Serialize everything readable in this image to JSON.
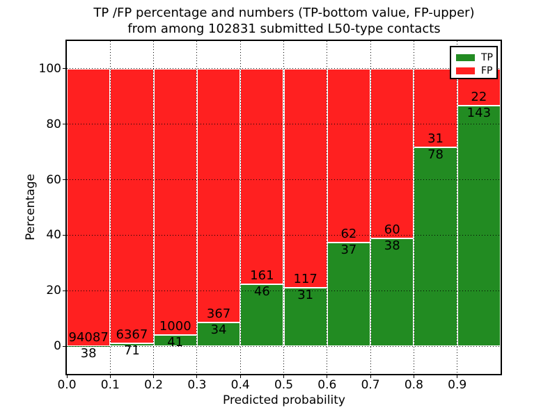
{
  "title": {
    "line1": "TP /FP percentage and numbers (TP-bottom value, FP-upper)",
    "line2": "from among 102831 submitted L50-type contacts"
  },
  "axes": {
    "xlabel": "Predicted probability",
    "ylabel": "Percentage",
    "x_tick_labels": [
      "0.0",
      "0.1",
      "0.2",
      "0.3",
      "0.4",
      "0.5",
      "0.6",
      "0.7",
      "0.8",
      "0.9"
    ],
    "y_tick_labels": [
      "0",
      "20",
      "40",
      "60",
      "80",
      "100"
    ]
  },
  "legend": {
    "items": [
      {
        "label": "TP",
        "color": "#228b22"
      },
      {
        "label": "FP",
        "color": "#ff2020"
      }
    ]
  },
  "colors": {
    "tp_green": "#228b22",
    "fp_red": "#ff2020",
    "background": "#ffffff",
    "text": "#000000",
    "grid": "#000000",
    "bar_edge": "#ffffff"
  },
  "chart_data": {
    "type": "bar",
    "stacked": true,
    "normalized": "each bin stack sums to 100%",
    "title": "TP /FP percentage and numbers (TP-bottom value, FP-upper) from among 102831 submitted L50-type contacts",
    "xlabel": "Predicted probability",
    "ylabel": "Percentage",
    "total_submitted_contacts": 102831,
    "categories": [
      "0.0-0.1",
      "0.1-0.2",
      "0.2-0.3",
      "0.3-0.4",
      "0.4-0.5",
      "0.5-0.6",
      "0.6-0.7",
      "0.7-0.8",
      "0.8-0.9",
      "0.9-1.0"
    ],
    "bin_edges": [
      0.0,
      0.1,
      0.2,
      0.3,
      0.4,
      0.5,
      0.6,
      0.7,
      0.8,
      0.9,
      1.0
    ],
    "series": [
      {
        "name": "TP",
        "color": "#228b22",
        "counts": [
          38,
          71,
          41,
          34,
          46,
          31,
          37,
          38,
          78,
          143
        ],
        "percent": [
          0.04,
          1.1,
          3.94,
          8.48,
          22.22,
          20.95,
          37.37,
          38.78,
          71.56,
          86.67
        ]
      },
      {
        "name": "FP",
        "color": "#ff2020",
        "counts": [
          94087,
          6367,
          1000,
          367,
          161,
          117,
          62,
          60,
          31,
          22
        ],
        "percent": [
          99.96,
          98.9,
          96.06,
          91.52,
          77.78,
          79.05,
          62.63,
          61.22,
          28.44,
          13.33
        ]
      }
    ],
    "annotation_rule": "FP count printed just above TP/FP boundary, TP count just below it",
    "x_ticks": [
      0.0,
      0.1,
      0.2,
      0.3,
      0.4,
      0.5,
      0.6,
      0.7,
      0.8,
      0.9
    ],
    "y_ticks": [
      0,
      20,
      40,
      60,
      80,
      100
    ],
    "xlim": [
      0.0,
      1.0
    ],
    "ylim": [
      -10,
      110
    ],
    "grid": "dotted black horizontal and vertical gridlines",
    "legend_position": "upper right"
  }
}
